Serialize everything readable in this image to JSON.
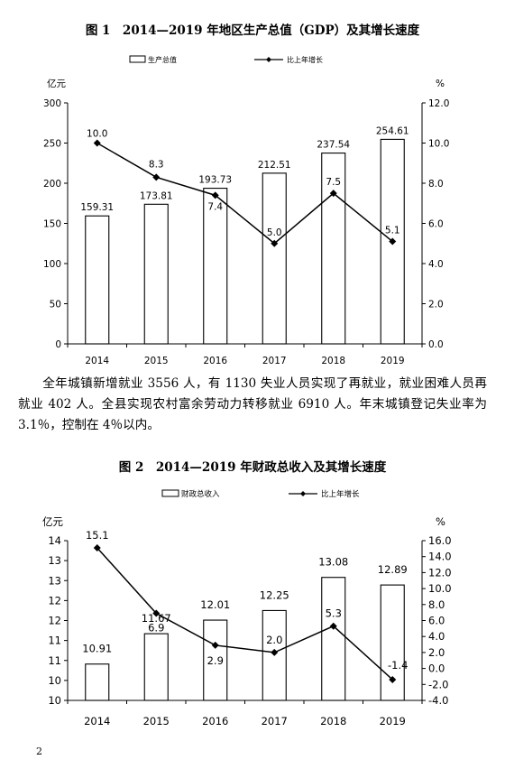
{
  "figure1": {
    "title": "图 1　2014—2019 年地区生产总值（GDP）及其增长速度",
    "chart_data": {
      "type": "bar",
      "categories": [
        "2014",
        "2015",
        "2016",
        "2017",
        "2018",
        "2019"
      ],
      "series": [
        {
          "name": "生产总值",
          "type": "bar",
          "axis": "left",
          "values": [
            159.31,
            173.81,
            193.73,
            212.51,
            237.54,
            254.61
          ],
          "labels": [
            "159.31",
            "173.81",
            "193.73",
            "212.51",
            "237.54",
            "254.61"
          ]
        },
        {
          "name": "比上年增长",
          "type": "line",
          "axis": "right",
          "values": [
            10.0,
            8.3,
            7.4,
            5.0,
            7.5,
            5.1
          ],
          "labels": [
            "10.0",
            "8.3",
            "7.4",
            "5.0",
            "7.5",
            "5.1"
          ]
        }
      ],
      "ylabel_left": "亿元",
      "ylabel_right": "%",
      "ylim_left": [
        0,
        300
      ],
      "yticks_left": [
        "0",
        "50",
        "100",
        "150",
        "200",
        "250",
        "300"
      ],
      "ylim_right": [
        0,
        12
      ],
      "yticks_right": [
        "0.0",
        "2.0",
        "4.0",
        "6.0",
        "8.0",
        "10.0",
        "12.0"
      ],
      "legend_position": "top"
    }
  },
  "paragraph": "全年城镇新增就业 3556 人，有 1130 失业人员实现了再就业，就业困难人员再就业 402 人。全县实现农村富余劳动力转移就业 6910 人。年末城镇登记失业率为 3.1％，控制在 4％以内。",
  "figure2": {
    "title": "图 2　2014—2019 年财政总收入及其增长速度",
    "chart_data": {
      "type": "bar",
      "categories": [
        "2014",
        "2015",
        "2016",
        "2017",
        "2018",
        "2019"
      ],
      "series": [
        {
          "name": "财政总收入",
          "type": "bar",
          "axis": "left",
          "values": [
            10.91,
            11.67,
            12.01,
            12.25,
            13.08,
            12.89
          ],
          "labels": [
            "10.91",
            "11.67",
            "12.01",
            "12.25",
            "13.08",
            "12.89"
          ]
        },
        {
          "name": "比上年增长",
          "type": "line",
          "axis": "right",
          "values": [
            15.1,
            6.9,
            2.9,
            2.0,
            5.3,
            -1.4
          ],
          "labels": [
            "15.1",
            "6.9",
            "2.9",
            "2.0",
            "5.3",
            "-1.4"
          ]
        }
      ],
      "ylabel_left": "亿元",
      "ylabel_right": "%",
      "ylim_left": [
        10,
        14
      ],
      "yticks_left": [
        "10",
        "10",
        "11",
        "11",
        "12",
        "12",
        "13",
        "13",
        "14"
      ],
      "ylim_right": [
        -4,
        16
      ],
      "yticks_right": [
        "-4.0",
        "-2.0",
        "0.0",
        "2.0",
        "4.0",
        "6.0",
        "8.0",
        "10.0",
        "12.0",
        "14.0",
        "16.0"
      ],
      "legend_position": "top"
    }
  },
  "page_number": "2"
}
